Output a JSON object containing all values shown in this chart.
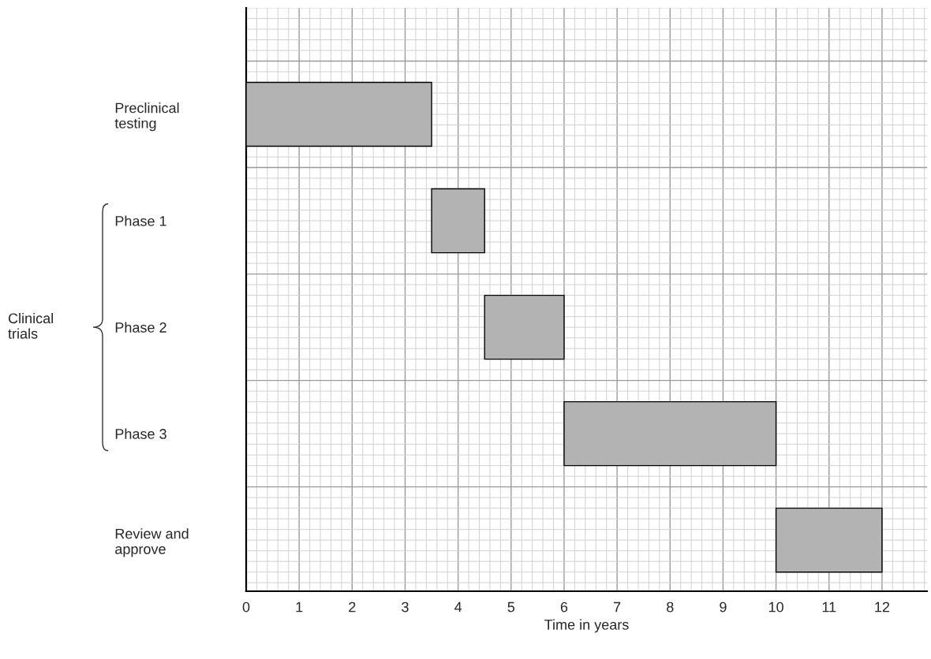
{
  "chart_data": {
    "type": "bar",
    "orientation": "horizontal",
    "categories": [
      "Preclinical\ntesting",
      "Phase 1",
      "Phase 2",
      "Phase 3",
      "Review and\napprove"
    ],
    "base": [
      0,
      3.5,
      4.5,
      6,
      10
    ],
    "values": [
      3.5,
      1,
      1.5,
      4,
      2
    ],
    "color": "#b3b3b3",
    "xlabel": "Time in years",
    "xlim": [
      0,
      12.85
    ],
    "xticks": [
      0,
      1,
      2,
      3,
      4,
      5,
      6,
      7,
      8,
      9,
      10,
      11,
      12
    ],
    "grid": true,
    "annotations": [
      "Clinical\ntrials"
    ]
  }
}
